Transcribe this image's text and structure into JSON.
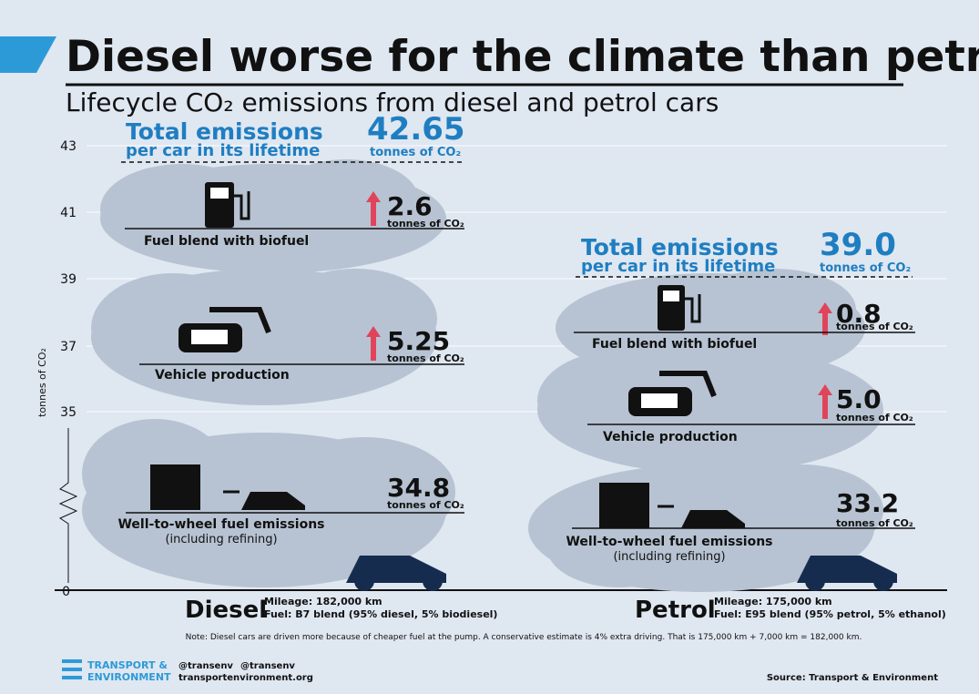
{
  "header": {
    "title": "Diesel worse for the climate than petrol",
    "subtitle": "Lifecycle CO₂ emissions from diesel and petrol cars"
  },
  "axis": {
    "label": "tonnes of CO₂",
    "ticks": [
      43,
      41,
      39,
      37,
      35,
      0
    ]
  },
  "diesel": {
    "total": {
      "label": "Total emissions",
      "sublabel": "per car in its lifetime",
      "value": "42.65",
      "unit": "tonnes of CO₂"
    },
    "components": [
      {
        "label": "Fuel blend with biofuel",
        "value": "2.6",
        "unit": "tonnes of CO₂"
      },
      {
        "label": "Vehicle production",
        "value": "5.25",
        "unit": "tonnes of CO₂"
      },
      {
        "label": "Well-to-wheel fuel emissions",
        "sublabel": "(including refining)",
        "value": "34.8",
        "unit": "tonnes of CO₂"
      }
    ],
    "name": "Diesel",
    "mileage": "Mileage: 182,000 km",
    "fuel": "Fuel: B7 blend (95% diesel, 5% biodiesel)"
  },
  "petrol": {
    "total": {
      "label": "Total emissions",
      "sublabel": "per car in its lifetime",
      "value": "39.0",
      "unit": "tonnes of CO₂"
    },
    "components": [
      {
        "label": "Fuel blend with biofuel",
        "value": "0.8",
        "unit": "tonnes of CO₂"
      },
      {
        "label": "Vehicle production",
        "value": "5.0",
        "unit": "tonnes of CO₂"
      },
      {
        "label": "Well-to-wheel fuel emissions",
        "sublabel": "(including refining)",
        "value": "33.2",
        "unit": "tonnes of CO₂"
      }
    ],
    "name": "Petrol",
    "mileage": "Mileage: 175,000 km",
    "fuel": "Fuel: E95 blend (95% petrol, 5% ethanol)"
  },
  "note": "Note: Diesel cars are driven more because of cheaper fuel at the pump. A conservative estimate is 4% extra driving. That is 175,000 km + 7,000 km = 182,000 km.",
  "footer": {
    "logo_line1": "TRANSPORT &",
    "logo_line2": "ENVIRONMENT",
    "twitter": "@transenv",
    "facebook": "@transenv",
    "website": "transportenvironment.org",
    "source": "Source: Transport & Environment"
  }
}
